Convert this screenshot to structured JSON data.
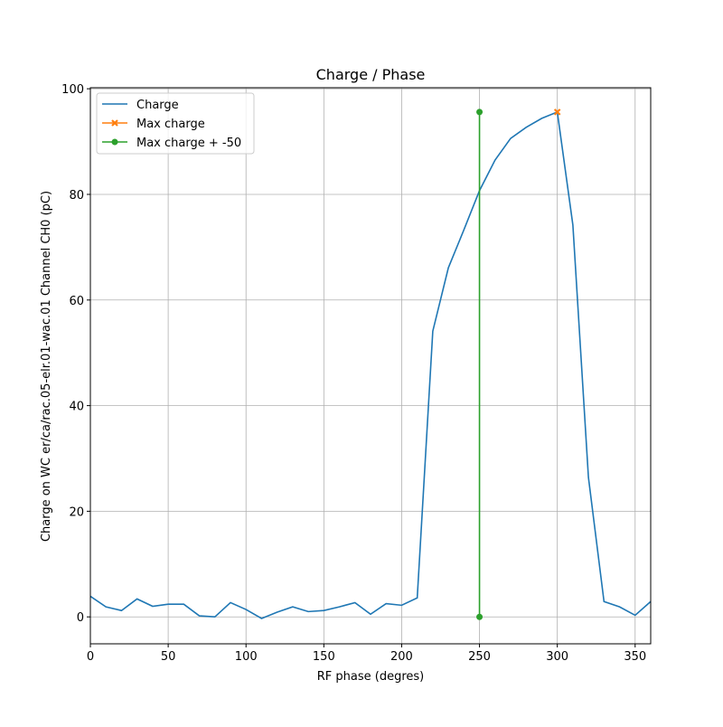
{
  "chart_data": {
    "type": "line",
    "title": "Charge / Phase",
    "xlabel": "RF phase (degres)",
    "ylabel": "Charge on WC er/ca/rac.05-elr.01-wac.01 Channel CH0 (pC)",
    "xlim": [
      0,
      360
    ],
    "ylim": [
      -5.1,
      100.2
    ],
    "xticks": [
      0,
      50,
      100,
      150,
      200,
      250,
      300,
      350
    ],
    "yticks": [
      0,
      20,
      40,
      60,
      80,
      100
    ],
    "grid": true,
    "legend_position": "top-left",
    "series": [
      {
        "name": "Charge",
        "color": "#1f77b4",
        "marker": "none",
        "x": [
          0,
          10,
          20,
          30,
          40,
          50,
          60,
          70,
          80,
          90,
          100,
          110,
          120,
          130,
          140,
          150,
          160,
          170,
          180,
          190,
          200,
          210,
          220,
          230,
          240,
          250,
          260,
          270,
          280,
          290,
          300,
          310,
          320,
          330,
          340,
          350,
          360
        ],
        "y": [
          3.9,
          1.9,
          1.2,
          3.4,
          2.0,
          2.4,
          2.4,
          0.2,
          0.0,
          2.7,
          1.4,
          -0.3,
          0.9,
          1.9,
          1.0,
          1.2,
          1.9,
          2.7,
          0.5,
          2.5,
          2.2,
          3.6,
          54.1,
          66.1,
          73.3,
          80.7,
          86.5,
          90.6,
          92.7,
          94.4,
          95.6,
          74.2,
          26.4,
          2.9,
          1.9,
          0.3,
          2.9
        ]
      },
      {
        "name": "Max charge",
        "color": "#ff7f0e",
        "marker": "x",
        "x": [
          300
        ],
        "y": [
          95.6
        ]
      },
      {
        "name": "Max charge + -50",
        "color": "#2ca02c",
        "marker": "o",
        "x": [
          250,
          250
        ],
        "y": [
          0,
          95.6
        ]
      }
    ]
  }
}
